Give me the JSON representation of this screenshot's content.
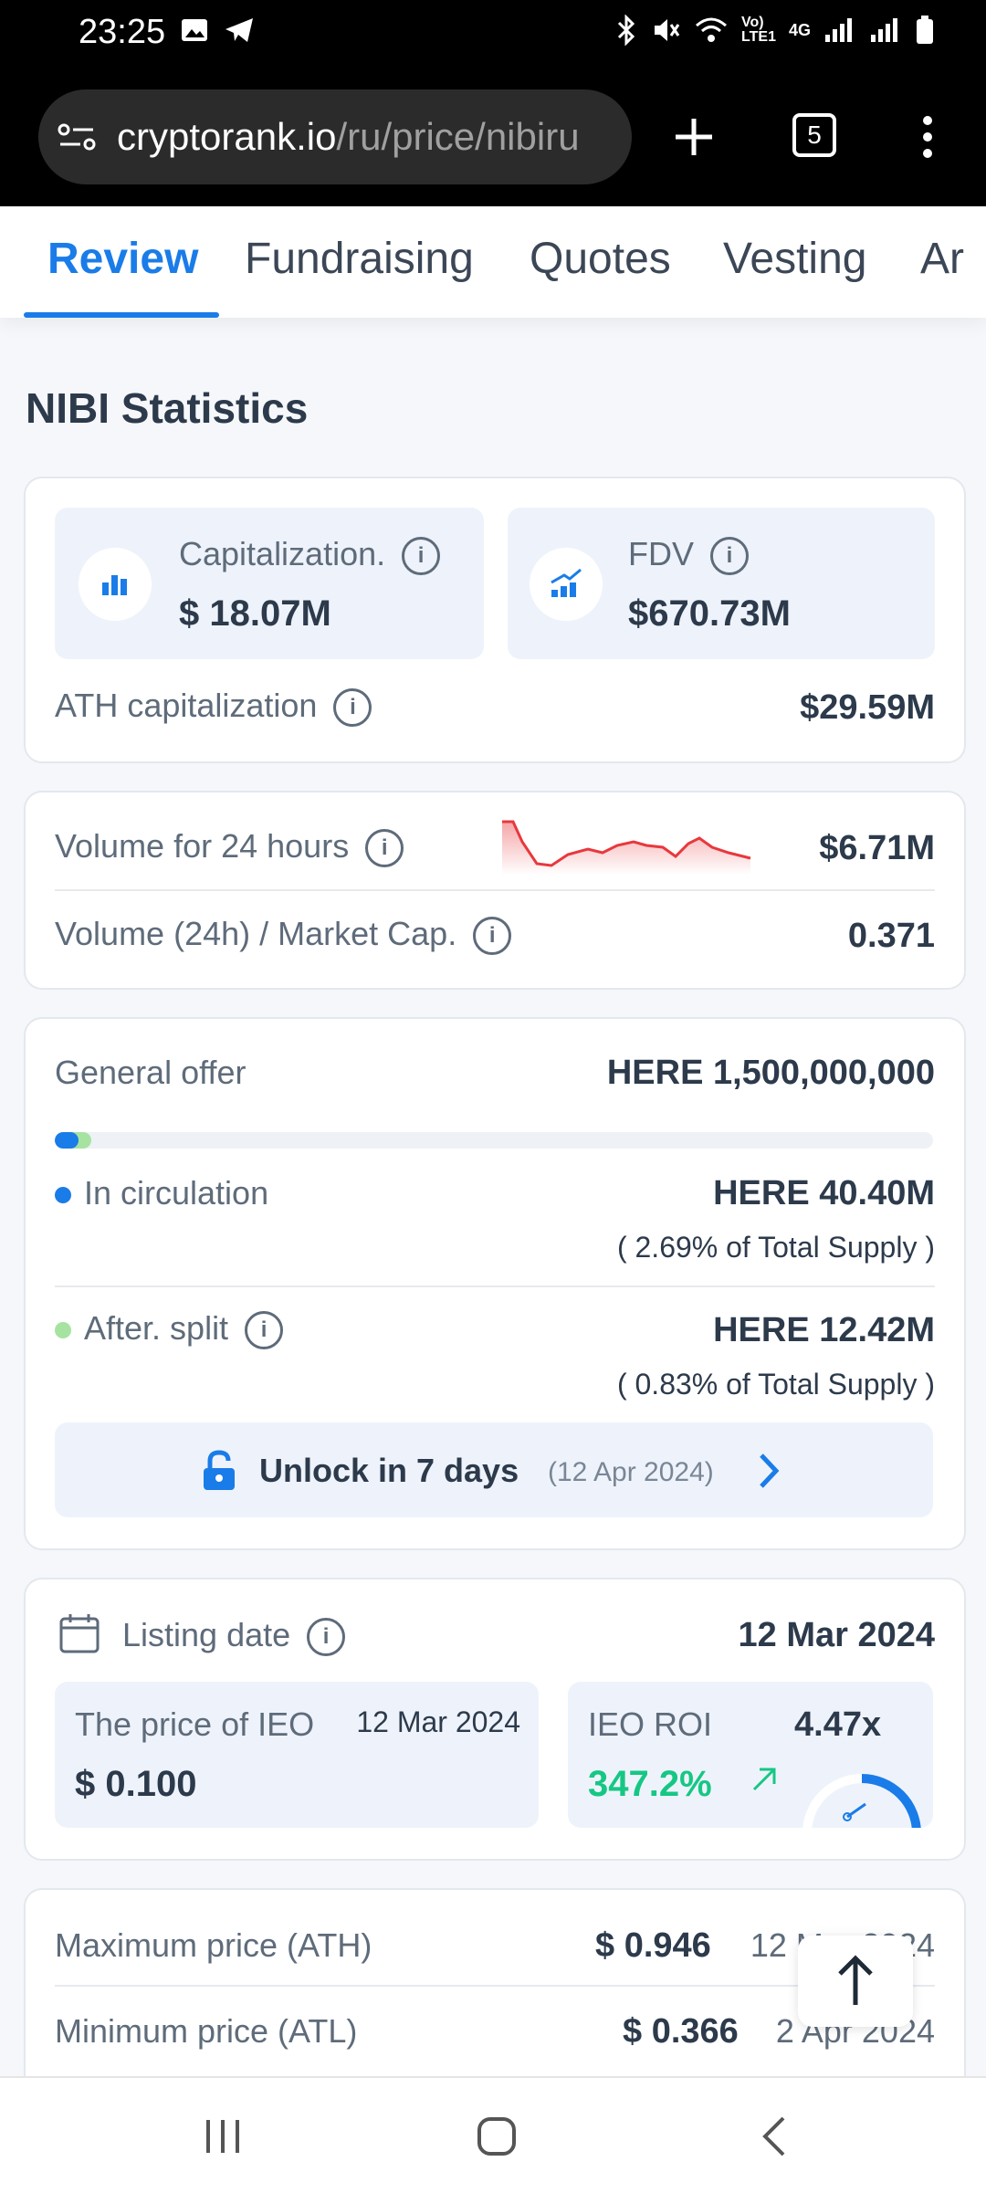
{
  "status_bar": {
    "time": "23:25",
    "network": "4G"
  },
  "browser": {
    "url_domain": "cryptorank.io",
    "url_path": "/ru/price/nibiru",
    "tab_count": "5"
  },
  "nav_tabs": [
    "Review",
    "Fundraising",
    "Quotes",
    "Vesting",
    "Ar"
  ],
  "section_title": "NIBI Statistics",
  "market": {
    "cap_label": "Capitalization.",
    "cap_value": "$ 18.07M",
    "fdv_label": "FDV",
    "fdv_value": "$670.73M",
    "ath_cap_label": "ATH capitalization",
    "ath_cap_value": "$29.59M"
  },
  "volume": {
    "vol_label": "Volume for 24 hours",
    "vol_value": "$6.71M",
    "ratio_label": "Volume (24h) / Market Cap.",
    "ratio_value": "0.371"
  },
  "supply": {
    "general_label": "General offer",
    "general_value": "HERE 1,500,000,000",
    "circulation_progress": 0.0269,
    "circ_label": "In circulation",
    "circ_value": "HERE 40.40M",
    "circ_pct": "( 2.69% of Total Supply )",
    "split_label": "After. split",
    "split_value": "HERE 12.42M",
    "split_pct": "( 0.83% of Total Supply )",
    "unlock_text": "Unlock in 7 days",
    "unlock_date": "(12 Apr 2024)",
    "colors": {
      "circulation": "#1a7ce8",
      "split": "#a6e3a1"
    }
  },
  "listing": {
    "listing_label": "Listing date",
    "listing_value": "12 Mar 2024",
    "ieo_price_label": "The price of IEO",
    "ieo_price_date": "12 Mar 2024",
    "ieo_price_value": "$ 0.100",
    "ieo_roi_label": "IEO ROI",
    "ieo_roi_multiple": "4.47x",
    "ieo_roi_pct": "347.2%",
    "positive_color": "#16c784"
  },
  "prices": {
    "ath_label": "Maximum price (ATH)",
    "ath_value": "$ 0.946",
    "ath_date": "12 Mar 2024",
    "atl_label": "Minimum price (ATL)",
    "atl_value": "$ 0.366",
    "atl_date": "2 Apr 2024"
  },
  "icons": [
    "bar-chart-icon",
    "growth-chart-icon",
    "info-icon",
    "lock-open-icon",
    "calendar-icon",
    "arrow-up-icon",
    "chevron-right-icon"
  ],
  "accent_color": "#1a7ce8"
}
